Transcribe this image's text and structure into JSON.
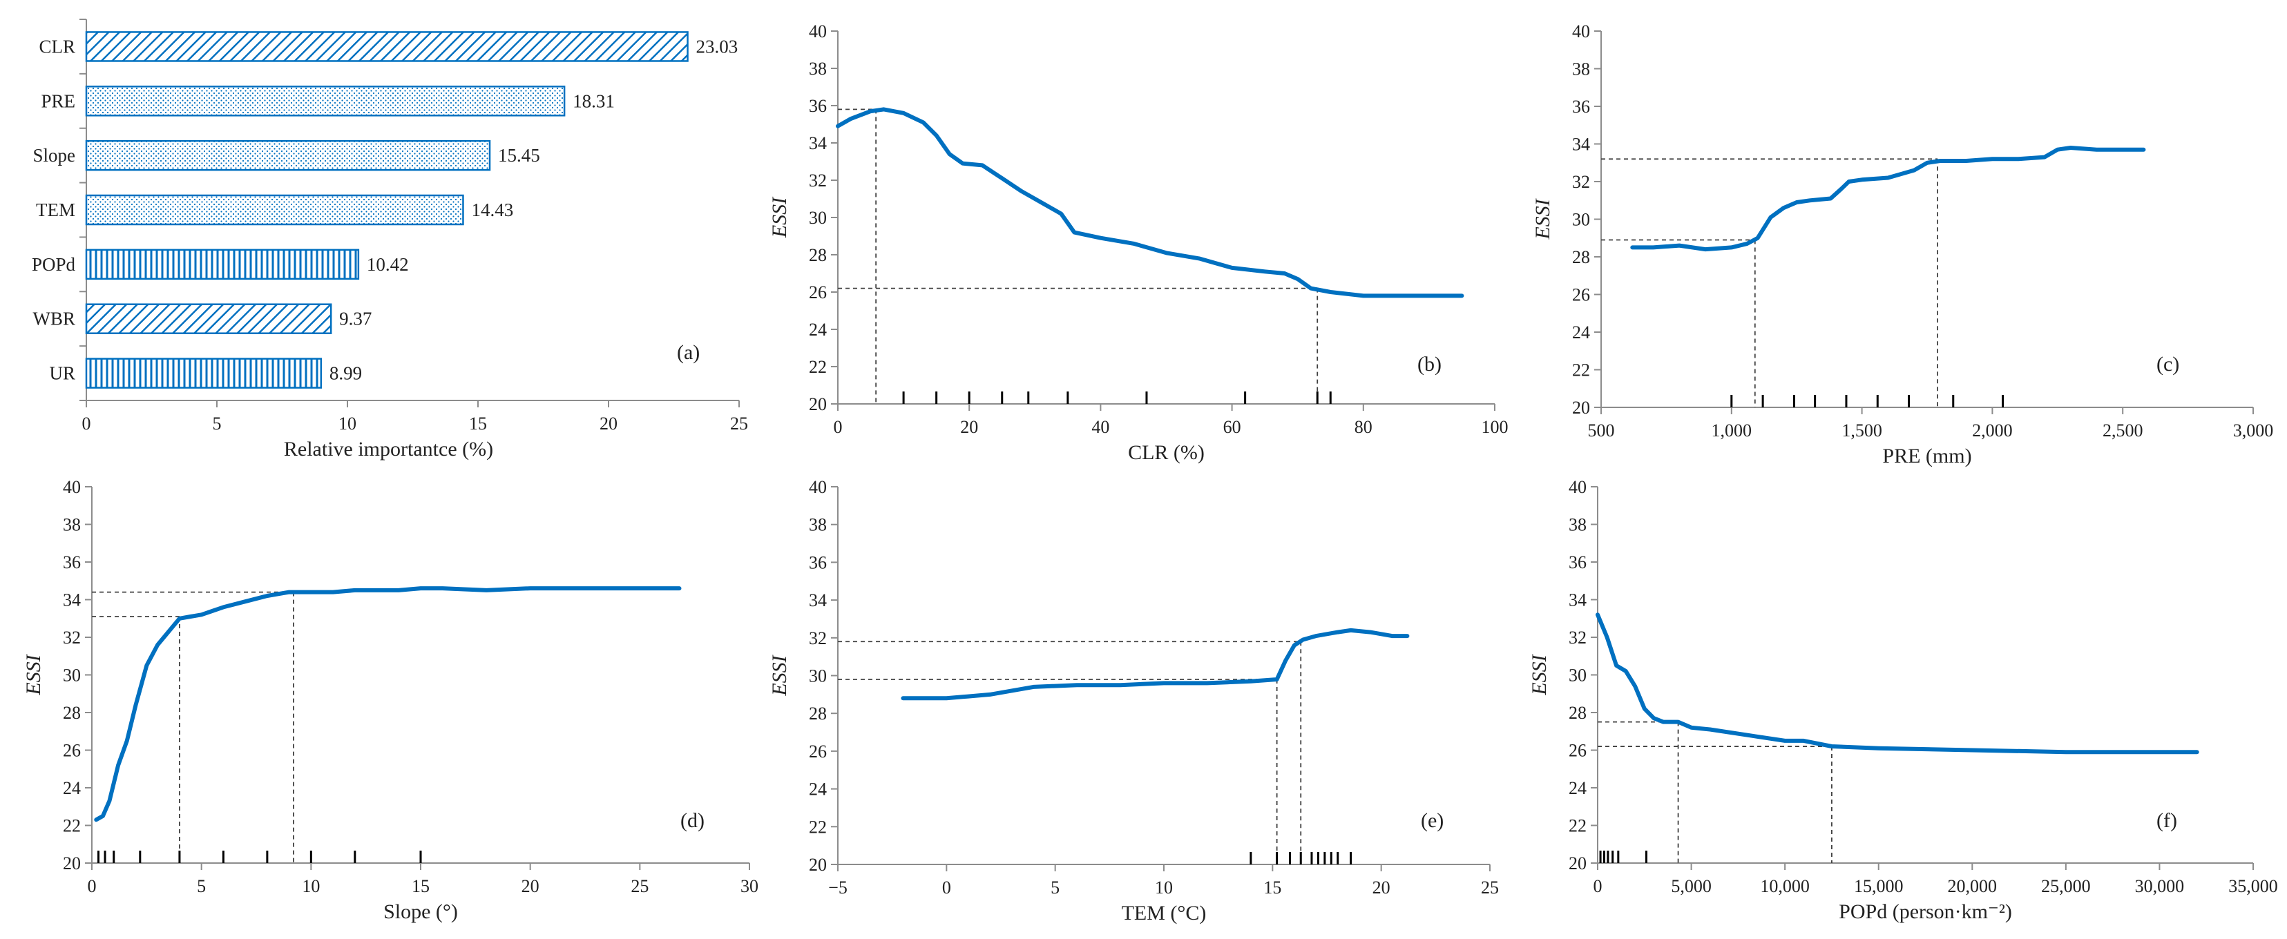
{
  "colors": {
    "line": "#0070C0",
    "bar": "#0070C0",
    "axis": "#8c8c8c",
    "guide": "#404040"
  },
  "chart_data": [
    {
      "id": "a",
      "type": "bar",
      "orientation": "horizontal",
      "panel_label": "(a)",
      "xlabel": "Relative importantce (%)",
      "xlim": [
        0,
        25
      ],
      "xticks": [
        "0",
        "5",
        "10",
        "15",
        "20",
        "25"
      ],
      "categories": [
        "CLR",
        "PRE",
        "Slope",
        "TEM",
        "POPd",
        "WBR",
        "UR"
      ],
      "values": [
        23.03,
        18.31,
        15.45,
        14.43,
        10.42,
        9.37,
        8.99
      ],
      "value_labels": [
        "23.03",
        "18.31",
        "15.45",
        "14.43",
        "10.42",
        "9.37",
        "8.99"
      ],
      "patterns": [
        "diagonal",
        "dots",
        "dots",
        "dots",
        "vertical",
        "diagonal",
        "vertical"
      ]
    },
    {
      "id": "b",
      "type": "line",
      "panel_label": "(b)",
      "xlabel": "CLR (%)",
      "ylabel": "ESSI",
      "xlim": [
        0,
        100
      ],
      "ylim": [
        20,
        40
      ],
      "xticks": [
        "0",
        "20",
        "40",
        "60",
        "80",
        "100"
      ],
      "yticks": [
        "20",
        "22",
        "24",
        "26",
        "28",
        "30",
        "32",
        "34",
        "36",
        "38",
        "40"
      ],
      "x": [
        0,
        2,
        5,
        7,
        10,
        13,
        15,
        17,
        19,
        22,
        25,
        28,
        31,
        34,
        36,
        40,
        45,
        50,
        55,
        60,
        65,
        68,
        70,
        72,
        75,
        80,
        85,
        95
      ],
      "y": [
        34.9,
        35.3,
        35.7,
        35.8,
        35.6,
        35.1,
        34.4,
        33.4,
        32.9,
        32.8,
        32.1,
        31.4,
        30.8,
        30.2,
        29.2,
        28.9,
        28.6,
        28.1,
        27.8,
        27.3,
        27.1,
        27.0,
        26.7,
        26.2,
        26.0,
        25.8,
        25.8,
        25.8
      ],
      "guides": [
        {
          "x": 5.8,
          "y": 35.8
        },
        {
          "x": 73,
          "y": 26.2
        }
      ],
      "rug": [
        10,
        15,
        20,
        25,
        29,
        35,
        47,
        62,
        73,
        75
      ]
    },
    {
      "id": "c",
      "type": "line",
      "panel_label": "(c)",
      "xlabel": "PRE (mm)",
      "ylabel": "ESSI",
      "xlim": [
        500,
        3000
      ],
      "ylim": [
        20,
        40
      ],
      "xticks": [
        "500",
        "1,000",
        "1,500",
        "2,000",
        "2,500",
        "3,000"
      ],
      "yticks": [
        "20",
        "22",
        "24",
        "26",
        "28",
        "30",
        "32",
        "34",
        "36",
        "38",
        "40"
      ],
      "x": [
        620,
        700,
        800,
        900,
        1000,
        1060,
        1100,
        1150,
        1200,
        1250,
        1300,
        1380,
        1420,
        1450,
        1500,
        1600,
        1700,
        1750,
        1800,
        1900,
        2000,
        2100,
        2200,
        2250,
        2300,
        2400,
        2580
      ],
      "y": [
        28.5,
        28.5,
        28.6,
        28.4,
        28.5,
        28.7,
        29.0,
        30.1,
        30.6,
        30.9,
        31.0,
        31.1,
        31.6,
        32.0,
        32.1,
        32.2,
        32.6,
        33.0,
        33.1,
        33.1,
        33.2,
        33.2,
        33.3,
        33.7,
        33.8,
        33.7,
        33.7
      ],
      "guides": [
        {
          "x": 1090,
          "y": 28.9
        },
        {
          "x": 1790,
          "y": 33.2
        }
      ],
      "rug": [
        1000,
        1120,
        1240,
        1320,
        1440,
        1560,
        1680,
        1850,
        2040
      ]
    },
    {
      "id": "d",
      "type": "line",
      "panel_label": "(d)",
      "xlabel": "Slope (°)",
      "ylabel": "ESSI",
      "xlim": [
        0,
        30
      ],
      "ylim": [
        20,
        40
      ],
      "xticks": [
        "0",
        "5",
        "10",
        "15",
        "20",
        "25",
        "30"
      ],
      "yticks": [
        "20",
        "22",
        "24",
        "26",
        "28",
        "30",
        "32",
        "34",
        "36",
        "38",
        "40"
      ],
      "x": [
        0.2,
        0.5,
        0.8,
        1.2,
        1.6,
        2.0,
        2.5,
        3.0,
        3.5,
        4.0,
        4.5,
        5.0,
        5.5,
        6.0,
        7.0,
        8.0,
        9.0,
        10.0,
        11.0,
        12.0,
        13.0,
        14.0,
        15.0,
        16.0,
        18.0,
        20.0,
        22.0,
        25.0,
        26.8
      ],
      "y": [
        22.3,
        22.5,
        23.3,
        25.2,
        26.5,
        28.4,
        30.5,
        31.6,
        32.3,
        33.0,
        33.1,
        33.2,
        33.4,
        33.6,
        33.9,
        34.2,
        34.4,
        34.4,
        34.4,
        34.5,
        34.5,
        34.5,
        34.6,
        34.6,
        34.5,
        34.6,
        34.6,
        34.6,
        34.6
      ],
      "guides": [
        {
          "x": 4.0,
          "y": 33.1
        },
        {
          "x": 9.2,
          "y": 34.4
        }
      ],
      "rug": [
        0.3,
        0.6,
        1.0,
        2.2,
        4.0,
        6.0,
        8.0,
        10.0,
        12.0,
        15.0
      ]
    },
    {
      "id": "e",
      "type": "line",
      "panel_label": "(e)",
      "xlabel": "TEM (°C)",
      "ylabel": "ESSI",
      "xlim": [
        -5,
        25
      ],
      "ylim": [
        20,
        40
      ],
      "xticks": [
        "−5",
        "0",
        "5",
        "10",
        "15",
        "20",
        "25"
      ],
      "yticks": [
        "20",
        "22",
        "24",
        "26",
        "28",
        "30",
        "32",
        "34",
        "36",
        "38",
        "40"
      ],
      "x": [
        -2,
        0,
        1,
        2,
        3,
        4,
        6,
        8,
        10,
        12,
        14,
        15.2,
        15.6,
        16.0,
        16.4,
        17.0,
        18.0,
        18.6,
        19.5,
        20.5,
        21.2
      ],
      "y": [
        28.8,
        28.8,
        28.9,
        29.0,
        29.2,
        29.4,
        29.5,
        29.5,
        29.6,
        29.6,
        29.7,
        29.8,
        30.8,
        31.6,
        31.9,
        32.1,
        32.3,
        32.4,
        32.3,
        32.1,
        32.1
      ],
      "guides": [
        {
          "x": 15.2,
          "y": 29.8
        },
        {
          "x": 16.3,
          "y": 31.8
        }
      ],
      "rug": [
        14.0,
        15.2,
        15.8,
        16.3,
        16.8,
        17.1,
        17.4,
        17.7,
        18.0,
        18.6
      ]
    },
    {
      "id": "f",
      "type": "line",
      "panel_label": "(f)",
      "xlabel": "POPd (person·km⁻²)",
      "ylabel": "ESSI",
      "xlim": [
        0,
        35000
      ],
      "ylim": [
        20,
        40
      ],
      "xticks": [
        "0",
        "5,000",
        "10,000",
        "15,000",
        "20,000",
        "25,000",
        "30,000",
        "35,000"
      ],
      "yticks": [
        "20",
        "22",
        "24",
        "26",
        "28",
        "30",
        "32",
        "34",
        "36",
        "38",
        "40"
      ],
      "x": [
        0,
        500,
        1000,
        1500,
        2000,
        2500,
        3000,
        3500,
        4300,
        5000,
        6000,
        8000,
        10000,
        11000,
        12500,
        15000,
        20000,
        25000,
        32000
      ],
      "y": [
        33.2,
        32.0,
        30.5,
        30.2,
        29.4,
        28.2,
        27.7,
        27.5,
        27.5,
        27.2,
        27.1,
        26.8,
        26.5,
        26.5,
        26.2,
        26.1,
        26.0,
        25.9,
        25.9
      ],
      "guides": [
        {
          "x": 4300,
          "y": 27.5
        },
        {
          "x": 12500,
          "y": 26.2
        }
      ],
      "rug": [
        150,
        350,
        550,
        800,
        1100,
        2600
      ]
    }
  ]
}
